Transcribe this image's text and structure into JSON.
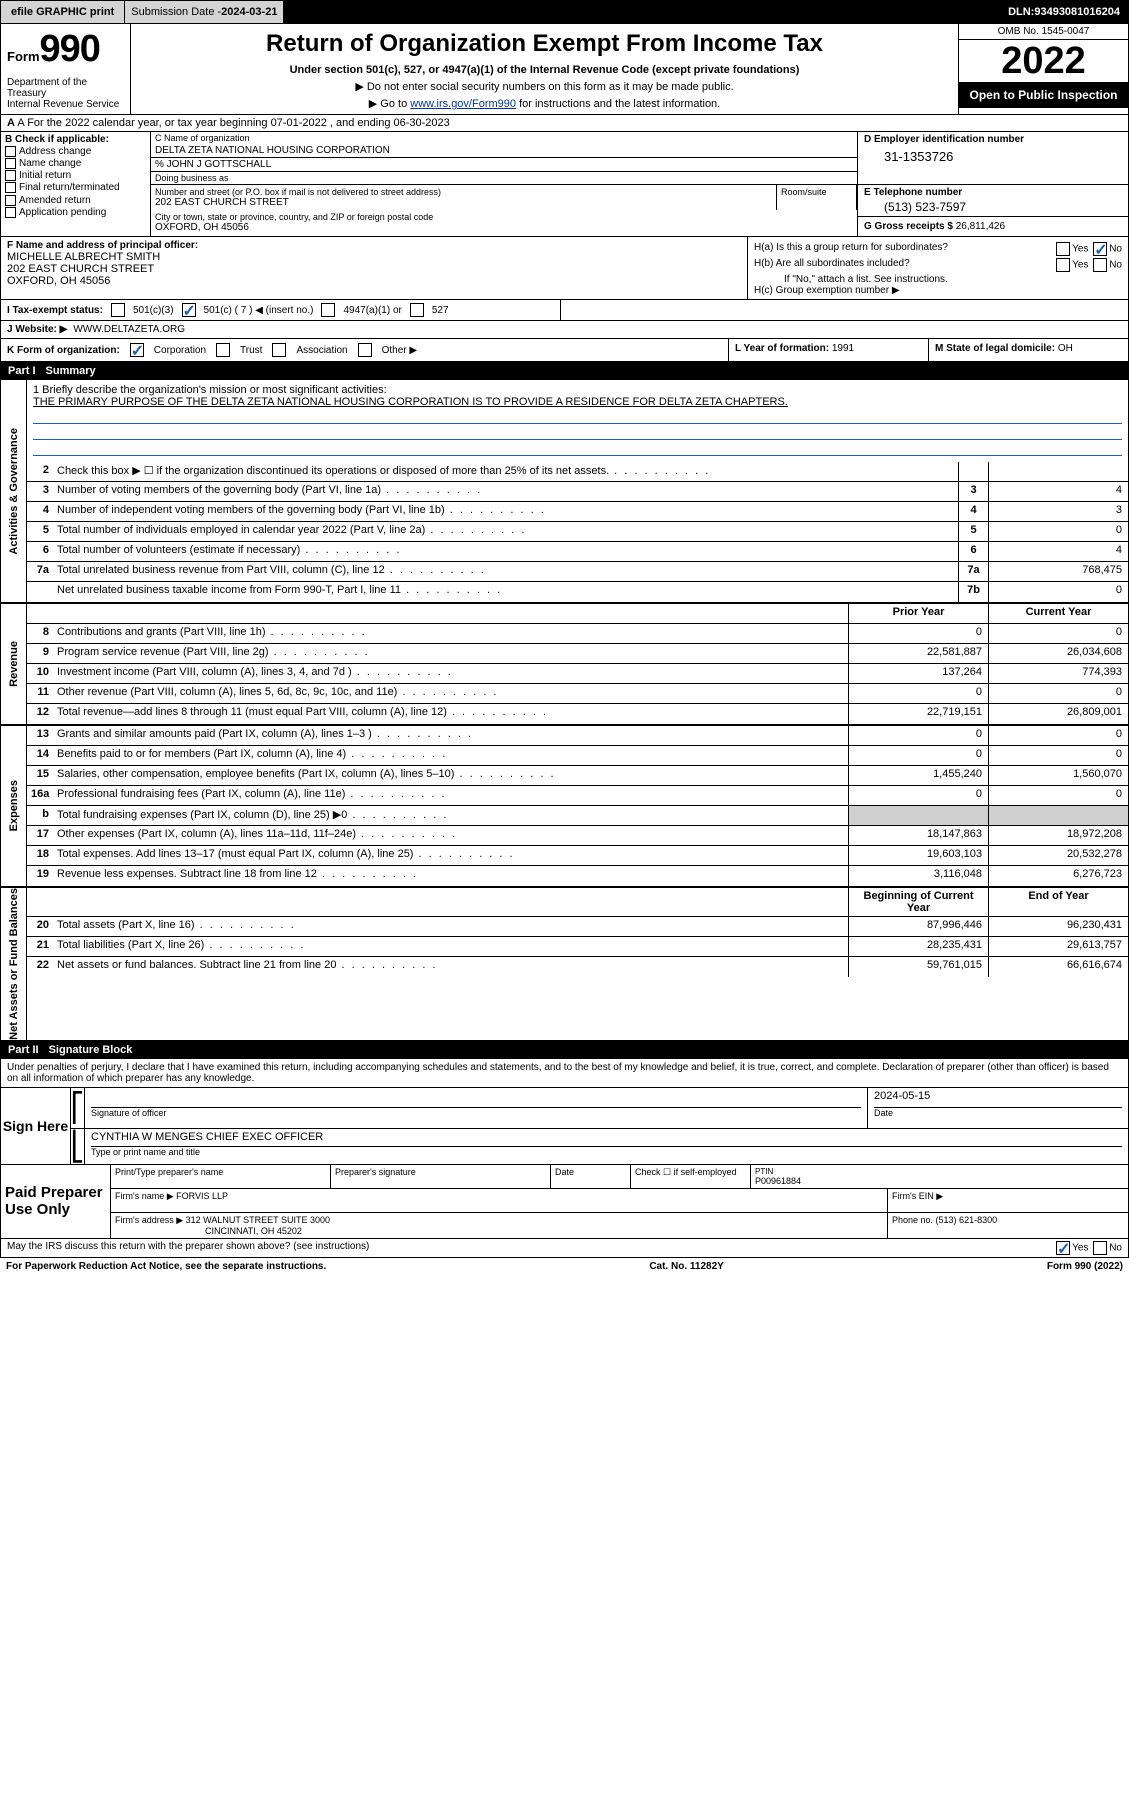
{
  "topbar": {
    "efile": "efile GRAPHIC print",
    "sub_label": "Submission Date - ",
    "sub_date": "2024-03-21",
    "dln_label": "DLN: ",
    "dln": "93493081016204"
  },
  "header": {
    "form_word": "Form",
    "form_num": "990",
    "dept": "Department of the Treasury\nInternal Revenue Service",
    "title": "Return of Organization Exempt From Income Tax",
    "sub": "Under section 501(c), 527, or 4947(a)(1) of the Internal Revenue Code (except private foundations)",
    "note1": "▶ Do not enter social security numbers on this form as it may be made public.",
    "note2_pre": "▶ Go to ",
    "note2_link": "www.irs.gov/Form990",
    "note2_post": " for instructions and the latest information.",
    "omb": "OMB No. 1545-0047",
    "year": "2022",
    "open": "Open to Public Inspection"
  },
  "rowA": {
    "text": "A For the 2022 calendar year, or tax year beginning 07-01-2022    , and ending 06-30-2023"
  },
  "B": {
    "hdr": "B Check if applicable:",
    "items": [
      "Address change",
      "Name change",
      "Initial return",
      "Final return/terminated",
      "Amended return",
      "Application pending"
    ]
  },
  "C": {
    "name_lbl": "C Name of organization",
    "name": "DELTA ZETA NATIONAL HOUSING CORPORATION",
    "care": "% JOHN J GOTTSCHALL",
    "dba_lbl": "Doing business as",
    "addr_lbl": "Number and street (or P.O. box if mail is not delivered to street address)",
    "room_lbl": "Room/suite",
    "addr": "202 EAST CHURCH STREET",
    "city_lbl": "City or town, state or province, country, and ZIP or foreign postal code",
    "city": "OXFORD, OH  45056"
  },
  "D": {
    "lbl": "D Employer identification number",
    "val": "31-1353726"
  },
  "E": {
    "lbl": "E Telephone number",
    "val": "(513) 523-7597"
  },
  "G": {
    "lbl": "G Gross receipts $ ",
    "val": "26,811,426"
  },
  "F": {
    "lbl": "F Name and address of principal officer:",
    "name": "MICHELLE ALBRECHT SMITH",
    "addr1": "202 EAST CHURCH STREET",
    "addr2": "OXFORD, OH  45056"
  },
  "H": {
    "a": "H(a)  Is this a group return for subordinates?",
    "b": "H(b)  Are all subordinates included?",
    "b_note": "If \"No,\" attach a list. See instructions.",
    "c": "H(c)  Group exemption number ▶",
    "yes": "Yes",
    "no": "No"
  },
  "I": {
    "lbl": "I   Tax-exempt status:",
    "o1": "501(c)(3)",
    "o2": "501(c) ( 7 ) ◀ (insert no.)",
    "o3": "4947(a)(1) or",
    "o4": "527"
  },
  "J": {
    "lbl": "J   Website: ▶ ",
    "val": "WWW.DELTAZETA.ORG"
  },
  "K": {
    "lbl": "K Form of organization:",
    "o1": "Corporation",
    "o2": "Trust",
    "o3": "Association",
    "o4": "Other ▶"
  },
  "L": {
    "lbl": "L Year of formation: ",
    "val": "1991"
  },
  "M": {
    "lbl": "M State of legal domicile: ",
    "val": "OH"
  },
  "part1": {
    "pt": "Part I",
    "nm": "Summary"
  },
  "mission": {
    "lbl": "1  Briefly describe the organization's mission or most significant activities:",
    "text": "THE PRIMARY PURPOSE OF THE DELTA ZETA NATIONAL HOUSING CORPORATION IS TO PROVIDE A RESIDENCE FOR DELTA ZETA CHAPTERS."
  },
  "lines_gov": [
    {
      "n": "2",
      "t": "Check this box ▶ ☐  if the organization discontinued its operations or disposed of more than 25% of its net assets.",
      "box": "",
      "a": "",
      "b": ""
    },
    {
      "n": "3",
      "t": "Number of voting members of the governing body (Part VI, line 1a)",
      "box": "3",
      "a": "",
      "b": "4"
    },
    {
      "n": "4",
      "t": "Number of independent voting members of the governing body (Part VI, line 1b)",
      "box": "4",
      "a": "",
      "b": "3"
    },
    {
      "n": "5",
      "t": "Total number of individuals employed in calendar year 2022 (Part V, line 2a)",
      "box": "5",
      "a": "",
      "b": "0"
    },
    {
      "n": "6",
      "t": "Total number of volunteers (estimate if necessary)",
      "box": "6",
      "a": "",
      "b": "4"
    },
    {
      "n": "7a",
      "t": "Total unrelated business revenue from Part VIII, column (C), line 12",
      "box": "7a",
      "a": "",
      "b": "768,475"
    },
    {
      "n": "",
      "t": "Net unrelated business taxable income from Form 990-T, Part I, line 11",
      "box": "7b",
      "a": "",
      "b": "0"
    }
  ],
  "hdr_prior": "Prior Year",
  "hdr_curr": "Current Year",
  "lines_rev": [
    {
      "n": "8",
      "t": "Contributions and grants (Part VIII, line 1h)",
      "a": "0",
      "b": "0"
    },
    {
      "n": "9",
      "t": "Program service revenue (Part VIII, line 2g)",
      "a": "22,581,887",
      "b": "26,034,608"
    },
    {
      "n": "10",
      "t": "Investment income (Part VIII, column (A), lines 3, 4, and 7d )",
      "a": "137,264",
      "b": "774,393"
    },
    {
      "n": "11",
      "t": "Other revenue (Part VIII, column (A), lines 5, 6d, 8c, 9c, 10c, and 11e)",
      "a": "0",
      "b": "0"
    },
    {
      "n": "12",
      "t": "Total revenue—add lines 8 through 11 (must equal Part VIII, column (A), line 12)",
      "a": "22,719,151",
      "b": "26,809,001"
    }
  ],
  "lines_exp": [
    {
      "n": "13",
      "t": "Grants and similar amounts paid (Part IX, column (A), lines 1–3 )",
      "a": "0",
      "b": "0"
    },
    {
      "n": "14",
      "t": "Benefits paid to or for members (Part IX, column (A), line 4)",
      "a": "0",
      "b": "0"
    },
    {
      "n": "15",
      "t": "Salaries, other compensation, employee benefits (Part IX, column (A), lines 5–10)",
      "a": "1,455,240",
      "b": "1,560,070"
    },
    {
      "n": "16a",
      "t": "Professional fundraising fees (Part IX, column (A), line 11e)",
      "a": "0",
      "b": "0"
    },
    {
      "n": "b",
      "t": "Total fundraising expenses (Part IX, column (D), line 25) ▶0",
      "a": "",
      "b": "",
      "grey": true
    },
    {
      "n": "17",
      "t": "Other expenses (Part IX, column (A), lines 11a–11d, 11f–24e)",
      "a": "18,147,863",
      "b": "18,972,208"
    },
    {
      "n": "18",
      "t": "Total expenses. Add lines 13–17 (must equal Part IX, column (A), line 25)",
      "a": "19,603,103",
      "b": "20,532,278"
    },
    {
      "n": "19",
      "t": "Revenue less expenses. Subtract line 18 from line 12",
      "a": "3,116,048",
      "b": "6,276,723"
    }
  ],
  "hdr_beg": "Beginning of Current Year",
  "hdr_end": "End of Year",
  "lines_net": [
    {
      "n": "20",
      "t": "Total assets (Part X, line 16)",
      "a": "87,996,446",
      "b": "96,230,431"
    },
    {
      "n": "21",
      "t": "Total liabilities (Part X, line 26)",
      "a": "28,235,431",
      "b": "29,613,757"
    },
    {
      "n": "22",
      "t": "Net assets or fund balances. Subtract line 21 from line 20",
      "a": "59,761,015",
      "b": "66,616,674"
    }
  ],
  "sidebars": {
    "gov": "Activities & Governance",
    "rev": "Revenue",
    "exp": "Expenses",
    "net": "Net Assets or Fund Balances"
  },
  "part2": {
    "pt": "Part II",
    "nm": "Signature Block"
  },
  "sig": {
    "decl": "Under penalties of perjury, I declare that I have examined this return, including accompanying schedules and statements, and to the best of my knowledge and belief, it is true, correct, and complete. Declaration of preparer (other than officer) is based on all information of which preparer has any knowledge.",
    "sign_here": "Sign Here",
    "sig_lbl": "Signature of officer",
    "date_lbl": "Date",
    "date": "2024-05-15",
    "name": "CYNTHIA W MENGES CHIEF EXEC OFFICER",
    "name_lbl": "Type or print name and title"
  },
  "paid": {
    "side": "Paid Preparer Use Only",
    "h1": "Print/Type preparer's name",
    "h2": "Preparer's signature",
    "h3": "Date",
    "h4": "Check ☐ if self-employed",
    "h5_lbl": "PTIN",
    "h5": "P00961884",
    "firm_lbl": "Firm's name   ▶ ",
    "firm": "FORVIS LLP",
    "ein_lbl": "Firm's EIN ▶",
    "addr_lbl": "Firm's address ▶ ",
    "addr1": "312 WALNUT STREET SUITE 3000",
    "addr2": "CINCINNATI, OH  45202",
    "phone_lbl": "Phone no. ",
    "phone": "(513) 621-8300"
  },
  "footer": {
    "discuss": "May the IRS discuss this return with the preparer shown above? (see instructions)",
    "yes": "Yes",
    "no": "No",
    "paperwork": "For Paperwork Reduction Act Notice, see the separate instructions.",
    "cat": "Cat. No. 11282Y",
    "form": "Form 990 (2022)"
  },
  "colors": {
    "link": "#003399",
    "check": "#1a5fb4",
    "grey": "#cfcfcf"
  }
}
